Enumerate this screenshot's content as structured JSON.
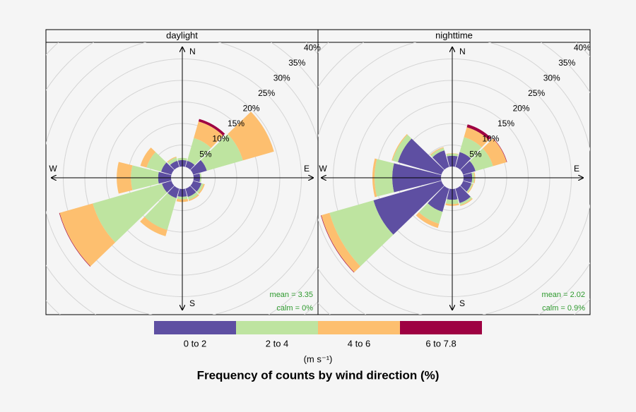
{
  "chart_data": [
    {
      "type": "windrose",
      "title": "daylight",
      "x": [
        0,
        30,
        60,
        90,
        120,
        150,
        180,
        210,
        240,
        270,
        300,
        330
      ],
      "series": [
        {
          "name": "0 to 2",
          "color": "#5E4FA2",
          "values": [
            1.5,
            1.5,
            3.3,
            1.5,
            2,
            2,
            1.8,
            2.3,
            2.3,
            3,
            2.5,
            1.5
          ]
        },
        {
          "name": "2 to 4",
          "color": "#BEE4A0",
          "values": [
            0.5,
            5.5,
            8.7,
            0.3,
            0.5,
            0.7,
            0.6,
            7.7,
            16.7,
            6.3,
            3.5,
            0.8
          ]
        },
        {
          "name": "4 to 6",
          "color": "#FDBF6F",
          "values": [
            0,
            4,
            7.5,
            0,
            0.3,
            0.3,
            0.6,
            1.5,
            8,
            3.3,
            1.5,
            0.2
          ]
        },
        {
          "name": "6 to 7.8",
          "color": "#9E0142",
          "values": [
            0,
            0.6,
            0,
            0,
            0,
            0,
            0,
            0,
            0.1,
            0,
            0,
            0
          ]
        }
      ],
      "ylim": [
        0,
        40
      ],
      "yticks": [
        {
          "value": 5,
          "label": "5%"
        },
        {
          "value": 10,
          "label": "10%"
        },
        {
          "value": 15,
          "label": "15%"
        },
        {
          "value": 20,
          "label": "20%"
        },
        {
          "value": 25,
          "label": "25%"
        },
        {
          "value": 30,
          "label": "30%"
        },
        {
          "value": 35,
          "label": "35%"
        },
        {
          "value": 40,
          "label": "40%"
        }
      ],
      "compass": [
        "N",
        "E",
        "S",
        "W"
      ],
      "annotations": [
        "mean = 3.35",
        "calm = 0%"
      ]
    },
    {
      "type": "windrose",
      "title": "nighttime",
      "x": [
        0,
        30,
        60,
        90,
        120,
        150,
        180,
        210,
        240,
        270,
        300,
        330
      ],
      "series": [
        {
          "name": "0 to 2",
          "color": "#5E4FA2",
          "values": [
            2.5,
            3.6,
            3,
            2,
            2,
            3.5,
            2.5,
            5.6,
            16.4,
            11.3,
            10.5,
            4
          ]
        },
        {
          "name": "2 to 4",
          "color": "#BEE4A0",
          "values": [
            0.5,
            3.6,
            4.2,
            0.5,
            0.3,
            0.5,
            1,
            2.9,
            10.6,
            4.1,
            1.3,
            0.6
          ]
        },
        {
          "name": "4 to 6",
          "color": "#FDBF6F",
          "values": [
            0.1,
            2.4,
            3.3,
            0.2,
            0.2,
            0.2,
            0.4,
            1,
            2,
            0.5,
            0.2,
            0.2
          ]
        },
        {
          "name": "6 to 7.8",
          "color": "#9E0142",
          "values": [
            0,
            0.7,
            0.1,
            0,
            0,
            0,
            0,
            0,
            0.1,
            0,
            0,
            0
          ]
        }
      ],
      "ylim": [
        0,
        40
      ],
      "yticks": [
        {
          "value": 5,
          "label": "5%"
        },
        {
          "value": 10,
          "label": "10%"
        },
        {
          "value": 15,
          "label": "15%"
        },
        {
          "value": 20,
          "label": "20%"
        },
        {
          "value": 25,
          "label": "25%"
        },
        {
          "value": 30,
          "label": "30%"
        },
        {
          "value": 35,
          "label": "35%"
        },
        {
          "value": 40,
          "label": "40%"
        }
      ],
      "compass": [
        "N",
        "E",
        "S",
        "W"
      ],
      "annotations": [
        "mean = 2.02",
        "calm = 0.9%"
      ]
    }
  ],
  "legend_title": "(m s⁻¹)",
  "caption": "Frequency of counts by wind direction (%)"
}
